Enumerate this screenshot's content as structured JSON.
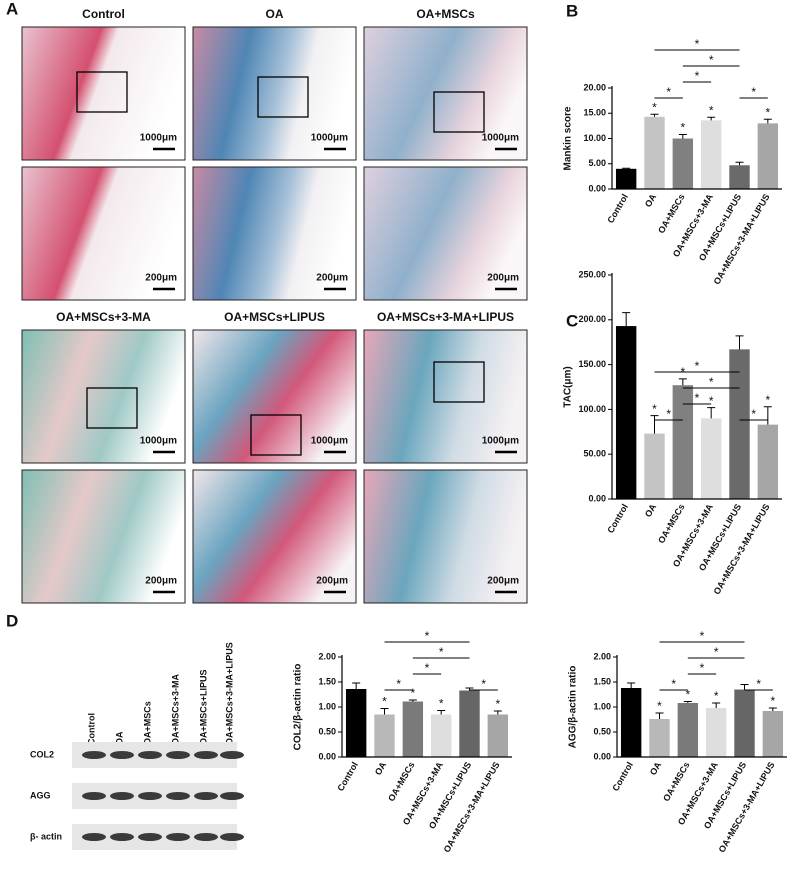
{
  "panels": [
    "A",
    "B",
    "C",
    "D"
  ],
  "histology": {
    "titles": [
      "Control",
      "OA",
      "OA+MSCs",
      "OA+MSCs+3-MA",
      "OA+MSCs+LIPUS",
      "OA+MSCs+3-MA+LIPUS"
    ],
    "scale_low": "1000μm",
    "scale_high": "200μm"
  },
  "blot": {
    "lanes": [
      "Control",
      "OA",
      "OA+MSCs",
      "OA+MSCs+3-MA",
      "OA+MSCs+LIPUS",
      "OA+MSCs+3-MA+LIPUS"
    ],
    "rows": [
      "COL2",
      "AGG",
      "β- actin"
    ]
  },
  "chart_data": [
    {
      "type": "bar",
      "ylabel": "Mankin score",
      "categories": [
        "Control",
        "OA",
        "OA+MSCs",
        "OA+MSCs+3-MA",
        "OA+MSCs+LIPUS",
        "OA+MSCs+3-MA+LIPUS"
      ],
      "values": [
        4.0,
        14.3,
        10.0,
        13.6,
        4.7,
        13.0
      ],
      "errors": [
        0.1,
        0.5,
        0.8,
        0.6,
        0.6,
        0.8
      ],
      "colors": [
        "#000000",
        "#c4c4c4",
        "#808080",
        "#dedede",
        "#6a6a6a",
        "#a6a6a6"
      ],
      "bar_labels": [
        null,
        "*",
        "*",
        "*",
        null,
        "*"
      ],
      "bracket_labels": [
        "*",
        "*",
        "*",
        "*",
        "*"
      ],
      "ylim": [
        0,
        20
      ],
      "yticks": [
        {
          "value": 0,
          "label": "0.00"
        },
        {
          "value": 5,
          "label": "5.00"
        },
        {
          "value": 10,
          "label": "10.00"
        },
        {
          "value": 15,
          "label": "15.00"
        },
        {
          "value": 20,
          "label": "20.00"
        }
      ]
    },
    {
      "type": "bar",
      "ylabel": "TAC(μm)",
      "categories": [
        "Control",
        "OA",
        "OA+MSCs",
        "OA+MSCs+3-MA",
        "OA+MSCs+LIPUS",
        "OA+MSCs+3-MA+LIPUS"
      ],
      "values": [
        193,
        73,
        127,
        90,
        167,
        83
      ],
      "errors": [
        15,
        20,
        7,
        12,
        15,
        20
      ],
      "colors": [
        "#000000",
        "#c4c4c4",
        "#808080",
        "#dedede",
        "#6a6a6a",
        "#a6a6a6"
      ],
      "bar_labels": [
        null,
        "*",
        "*",
        "*",
        null,
        "*"
      ],
      "bracket_labels": [
        "*",
        "*",
        "*",
        "*",
        "*"
      ],
      "ylim": [
        0,
        250
      ],
      "yticks": [
        {
          "value": 0,
          "label": "0.00"
        },
        {
          "value": 50,
          "label": "50.00"
        },
        {
          "value": 100,
          "label": "100.00"
        },
        {
          "value": 150,
          "label": "150.00"
        },
        {
          "value": 200,
          "label": "200.00"
        },
        {
          "value": 250,
          "label": "250.00"
        }
      ]
    },
    {
      "type": "bar",
      "ylabel": "COL2/β-actin ratio",
      "categories": [
        "Control",
        "OA",
        "OA+MSCs",
        "OA+MSCs+3-MA",
        "OA+MSCs+LIPUS",
        "OA+MSCs+3-MA+LIPUS"
      ],
      "values": [
        1.36,
        0.85,
        1.11,
        0.85,
        1.33,
        0.85
      ],
      "errors": [
        0.12,
        0.12,
        0.03,
        0.08,
        0.05,
        0.07
      ],
      "colors": [
        "#000000",
        "#b8b8b8",
        "#7a7a7a",
        "#dedede",
        "#666666",
        "#a6a6a6"
      ],
      "bar_labels": [
        null,
        "*",
        "*",
        "*",
        null,
        "*"
      ],
      "bracket_labels": [
        "*",
        "*",
        "*",
        "*",
        "*"
      ],
      "ylim": [
        0,
        2
      ],
      "yticks": [
        {
          "value": 0,
          "label": "0.00"
        },
        {
          "value": 0.5,
          "label": "0.50"
        },
        {
          "value": 1,
          "label": "1.00"
        },
        {
          "value": 1.5,
          "label": "1.50"
        },
        {
          "value": 2,
          "label": "2.00"
        }
      ]
    },
    {
      "type": "bar",
      "ylabel": "AGG/β-actin ratio",
      "categories": [
        "Control",
        "OA",
        "OA+MSCs",
        "OA+MSCs+3-MA",
        "OA+MSCs+LIPUS",
        "OA+MSCs+3-MA+LIPUS"
      ],
      "values": [
        1.38,
        0.76,
        1.08,
        0.98,
        1.35,
        0.92
      ],
      "errors": [
        0.1,
        0.12,
        0.03,
        0.1,
        0.1,
        0.06
      ],
      "colors": [
        "#000000",
        "#b8b8b8",
        "#7a7a7a",
        "#dedede",
        "#666666",
        "#a6a6a6"
      ],
      "bar_labels": [
        null,
        "*",
        "*",
        "*",
        null,
        "*"
      ],
      "bracket_labels": [
        "*",
        "*",
        "*",
        "*",
        "*"
      ],
      "ylim": [
        0,
        2
      ],
      "yticks": [
        {
          "value": 0,
          "label": "0.00"
        },
        {
          "value": 0.5,
          "label": "0.50"
        },
        {
          "value": 1,
          "label": "1.00"
        },
        {
          "value": 1.5,
          "label": "1.50"
        },
        {
          "value": 2,
          "label": "2.00"
        }
      ]
    }
  ]
}
